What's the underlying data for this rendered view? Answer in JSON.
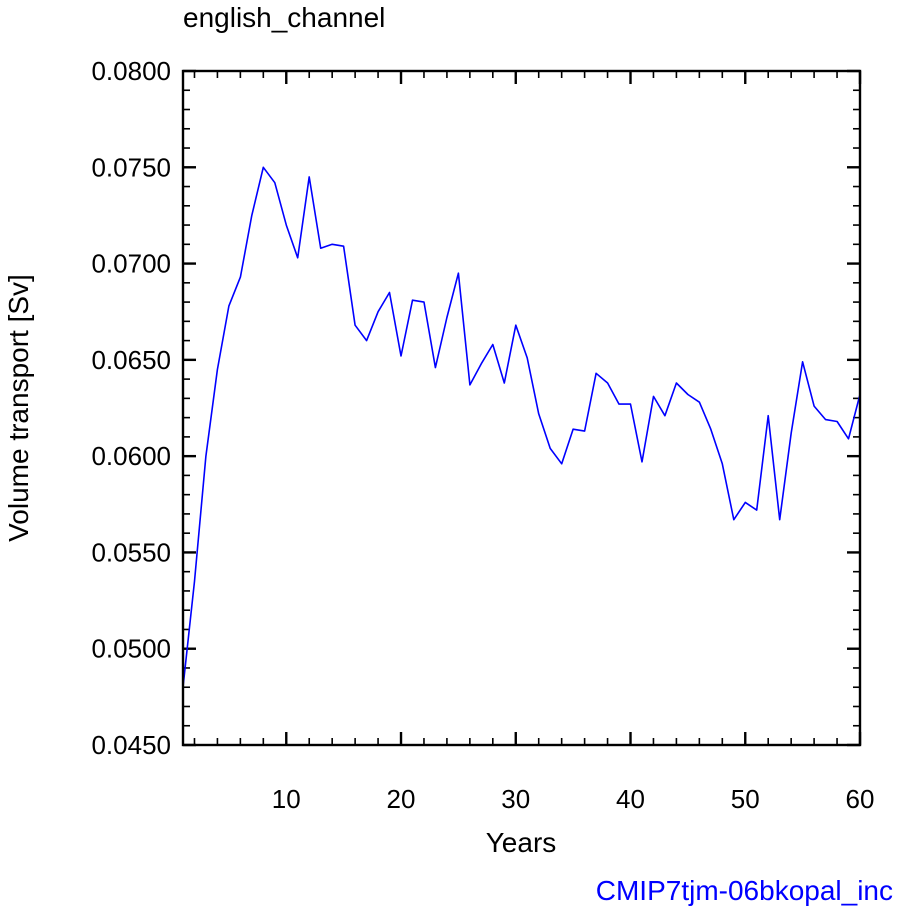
{
  "chart_data": {
    "type": "line",
    "title": "english_channel",
    "xlabel": "Years",
    "ylabel": "Volume transport [Sv]",
    "footer": "CMIP7tjm-06bkopal_inc",
    "xlim": [
      1,
      60
    ],
    "ylim": [
      0.045,
      0.08
    ],
    "xticks": [
      10,
      20,
      30,
      40,
      50,
      60
    ],
    "yticks": [
      0.045,
      0.05,
      0.055,
      0.06,
      0.065,
      0.07,
      0.075,
      0.08
    ],
    "xtick_labels": [
      "10",
      "20",
      "30",
      "40",
      "50",
      "60"
    ],
    "ytick_labels": [
      "0.0450",
      "0.0500",
      "0.0550",
      "0.0600",
      "0.0650",
      "0.0700",
      "0.0750",
      "0.0800"
    ],
    "grid": false,
    "colors": {
      "series": "#0000ff",
      "axis": "#000000",
      "footer": "#0000ff"
    },
    "series": [
      {
        "x": [
          1,
          2,
          3,
          4,
          5,
          6,
          7,
          8,
          9,
          10,
          11,
          12,
          13,
          14,
          15,
          16,
          17,
          18,
          19,
          20,
          21,
          22,
          23,
          24,
          25,
          26,
          27,
          28,
          29,
          30,
          31,
          32,
          33,
          34,
          35,
          36,
          37,
          38,
          39,
          40,
          41,
          42,
          43,
          44,
          45,
          46,
          47,
          48,
          49,
          50,
          51,
          52,
          53,
          54,
          55,
          56,
          57,
          58,
          59,
          60
        ],
        "values": [
          0.048,
          0.0535,
          0.06,
          0.0645,
          0.0678,
          0.0693,
          0.0725,
          0.075,
          0.0742,
          0.072,
          0.0703,
          0.0745,
          0.0708,
          0.071,
          0.0709,
          0.0668,
          0.066,
          0.0675,
          0.0685,
          0.0652,
          0.0681,
          0.068,
          0.0646,
          0.0672,
          0.0695,
          0.0637,
          0.0648,
          0.0658,
          0.0638,
          0.0668,
          0.0651,
          0.0622,
          0.0604,
          0.0596,
          0.0614,
          0.0613,
          0.0643,
          0.0638,
          0.0627,
          0.0627,
          0.0597,
          0.0631,
          0.0621,
          0.0638,
          0.0632,
          0.0628,
          0.0614,
          0.0596,
          0.0567,
          0.0576,
          0.0572,
          0.0621,
          0.0567,
          0.0612,
          0.0649,
          0.0626,
          0.0619,
          0.0618,
          0.0609,
          0.0632
        ]
      }
    ]
  }
}
